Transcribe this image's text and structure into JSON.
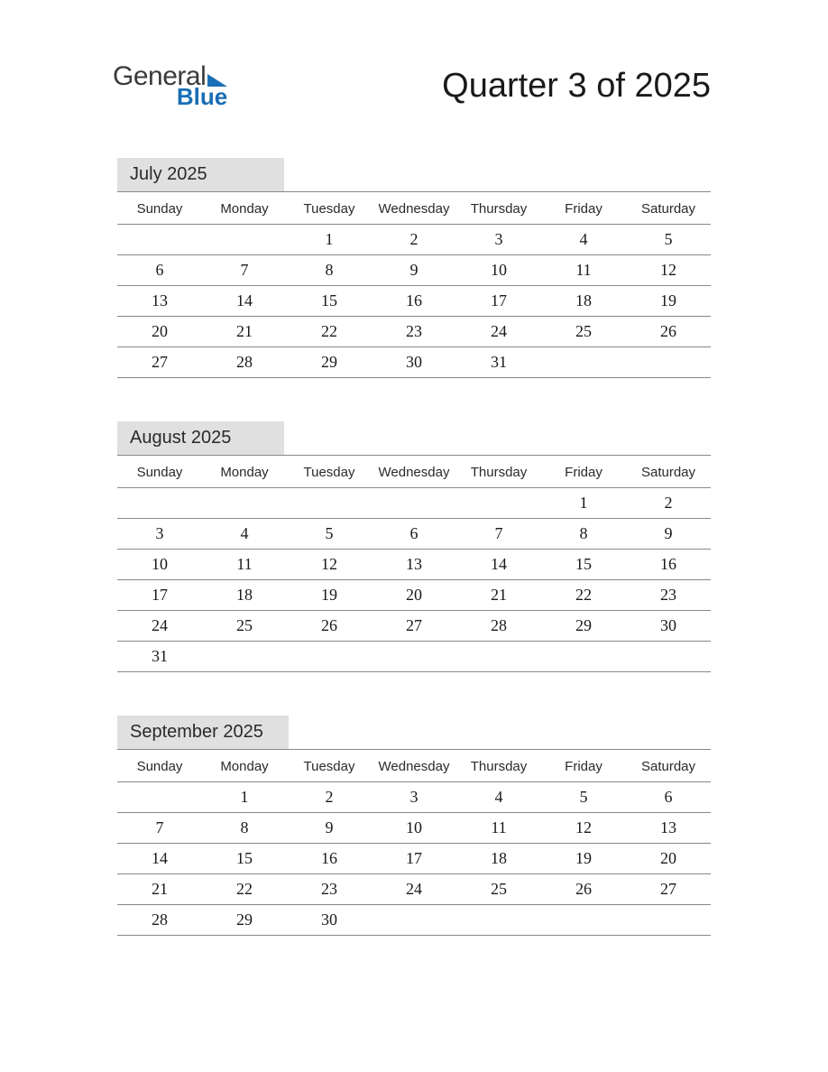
{
  "page_title": "Quarter 3 of 2025",
  "logo": {
    "part1": "General",
    "part2": "Blue"
  },
  "colors": {
    "logo_gray": "#3a3a3a",
    "logo_blue": "#1a6fb5",
    "month_label_bg": "#e0e0e0",
    "border": "#888888",
    "text": "#1a1a1a",
    "background": "#ffffff"
  },
  "typography": {
    "title_fontsize": 38,
    "month_label_fontsize": 20,
    "day_header_fontsize": 15,
    "date_fontsize": 18,
    "date_font_family": "Georgia, serif",
    "ui_font_family": "Arial, sans-serif"
  },
  "day_headers": [
    "Sunday",
    "Monday",
    "Tuesday",
    "Wednesday",
    "Thursday",
    "Friday",
    "Saturday"
  ],
  "months": [
    {
      "label": "July 2025",
      "weeks": [
        [
          "",
          "",
          "1",
          "2",
          "3",
          "4",
          "5"
        ],
        [
          "6",
          "7",
          "8",
          "9",
          "10",
          "11",
          "12"
        ],
        [
          "13",
          "14",
          "15",
          "16",
          "17",
          "18",
          "19"
        ],
        [
          "20",
          "21",
          "22",
          "23",
          "24",
          "25",
          "26"
        ],
        [
          "27",
          "28",
          "29",
          "30",
          "31",
          "",
          ""
        ]
      ]
    },
    {
      "label": "August 2025",
      "weeks": [
        [
          "",
          "",
          "",
          "",
          "",
          "1",
          "2"
        ],
        [
          "3",
          "4",
          "5",
          "6",
          "7",
          "8",
          "9"
        ],
        [
          "10",
          "11",
          "12",
          "13",
          "14",
          "15",
          "16"
        ],
        [
          "17",
          "18",
          "19",
          "20",
          "21",
          "22",
          "23"
        ],
        [
          "24",
          "25",
          "26",
          "27",
          "28",
          "29",
          "30"
        ],
        [
          "31",
          "",
          "",
          "",
          "",
          "",
          ""
        ]
      ]
    },
    {
      "label": "September 2025",
      "weeks": [
        [
          "",
          "1",
          "2",
          "3",
          "4",
          "5",
          "6"
        ],
        [
          "7",
          "8",
          "9",
          "10",
          "11",
          "12",
          "13"
        ],
        [
          "14",
          "15",
          "16",
          "17",
          "18",
          "19",
          "20"
        ],
        [
          "21",
          "22",
          "23",
          "24",
          "25",
          "26",
          "27"
        ],
        [
          "28",
          "29",
          "30",
          "",
          "",
          "",
          ""
        ]
      ]
    }
  ]
}
